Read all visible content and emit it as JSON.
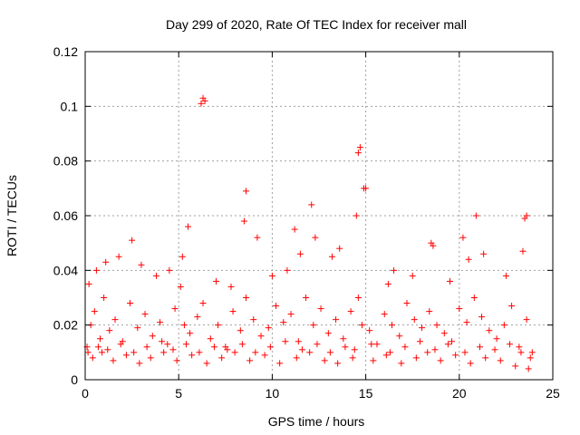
{
  "chart_data": {
    "type": "scatter",
    "title": "Day 299 of 2020, Rate Of TEC Index for receiver mall",
    "xlabel": "GPS time / hours",
    "ylabel": "ROTI / TECUs",
    "xlim": [
      0,
      25
    ],
    "ylim": [
      0,
      0.12
    ],
    "xticks": [
      0,
      5,
      10,
      15,
      20,
      25
    ],
    "yticks": [
      0,
      0.02,
      0.04,
      0.06,
      0.08,
      0.1,
      0.12
    ],
    "xtick_labels": [
      "0",
      "5",
      "10",
      "15",
      "20",
      "25"
    ],
    "ytick_labels": [
      "0",
      "0.02",
      "0.04",
      "0.06",
      "0.08",
      "0.1",
      "0.12"
    ],
    "grid": true,
    "marker": "+",
    "color": "#ff0000",
    "series": [
      {
        "x": [
          0.1,
          0.3,
          0.5,
          0.8,
          1.0,
          1.3,
          1.6,
          2.0,
          2.4,
          2.8,
          3.2,
          3.6,
          4.0,
          4.4,
          4.8,
          5.1,
          5.3,
          5.6,
          6.0,
          6.3,
          6.7,
          7.1,
          7.5,
          7.9,
          8.3,
          8.6,
          9.0,
          9.4,
          9.8,
          10.2,
          10.6,
          11.0,
          11.4,
          11.8,
          12.2,
          12.6,
          13.0,
          13.4,
          13.8,
          14.2,
          14.6,
          14.8,
          15.2,
          15.6,
          16.0,
          16.4,
          16.8,
          17.2,
          17.6,
          18.0,
          18.4,
          18.8,
          19.2,
          19.6,
          20.0,
          20.4,
          20.8,
          21.2,
          21.6,
          22.0,
          22.4,
          22.8,
          23.2,
          23.6,
          23.9,
          0.2,
          0.6,
          1.1,
          1.8,
          2.5,
          3.0,
          3.8,
          4.5,
          5.2,
          5.5,
          6.2,
          6.3,
          6.4,
          7.0,
          7.8,
          8.5,
          8.6,
          9.2,
          10.0,
          10.8,
          11.2,
          11.5,
          12.1,
          12.3,
          13.2,
          13.6,
          14.5,
          14.6,
          14.7,
          14.9,
          15.0,
          16.2,
          16.5,
          17.5,
          18.5,
          18.6,
          19.5,
          20.2,
          20.5,
          20.9,
          21.3,
          22.5,
          23.4,
          23.5,
          23.6,
          0.4,
          0.9,
          1.5,
          2.2,
          2.9,
          3.5,
          4.2,
          4.9,
          5.7,
          6.5,
          7.3,
          8.0,
          8.8,
          9.6,
          10.4,
          11.3,
          12.0,
          12.8,
          13.5,
          14.3,
          15.4,
          16.1,
          16.9,
          17.7,
          18.3,
          19.0,
          19.8,
          20.6,
          21.4,
          22.2,
          23.0,
          23.7,
          0.15,
          0.7,
          1.2,
          1.9,
          2.6,
          3.3,
          4.1,
          4.7,
          5.4,
          6.1,
          6.9,
          7.6,
          8.4,
          9.1,
          9.9,
          10.7,
          11.6,
          12.4,
          13.1,
          13.9,
          14.4,
          15.3,
          16.3,
          17.1,
          17.9,
          18.7,
          19.4,
          20.3,
          21.1,
          21.9,
          22.7,
          23.3,
          23.8
        ],
        "y": [
          0.012,
          0.02,
          0.025,
          0.015,
          0.03,
          0.018,
          0.022,
          0.014,
          0.028,
          0.019,
          0.024,
          0.016,
          0.021,
          0.013,
          0.026,
          0.034,
          0.02,
          0.017,
          0.023,
          0.028,
          0.015,
          0.02,
          0.012,
          0.025,
          0.018,
          0.03,
          0.022,
          0.016,
          0.019,
          0.027,
          0.021,
          0.024,
          0.014,
          0.03,
          0.02,
          0.026,
          0.017,
          0.022,
          0.015,
          0.025,
          0.03,
          0.02,
          0.018,
          0.013,
          0.024,
          0.02,
          0.016,
          0.028,
          0.022,
          0.019,
          0.025,
          0.02,
          0.017,
          0.014,
          0.026,
          0.021,
          0.03,
          0.023,
          0.018,
          0.015,
          0.02,
          0.027,
          0.012,
          0.022,
          0.01,
          0.035,
          0.04,
          0.043,
          0.045,
          0.051,
          0.042,
          0.038,
          0.04,
          0.045,
          0.056,
          0.101,
          0.103,
          0.102,
          0.036,
          0.034,
          0.058,
          0.069,
          0.052,
          0.038,
          0.04,
          0.055,
          0.046,
          0.064,
          0.052,
          0.045,
          0.048,
          0.06,
          0.083,
          0.085,
          0.07,
          0.07,
          0.035,
          0.04,
          0.038,
          0.05,
          0.049,
          0.036,
          0.052,
          0.044,
          0.06,
          0.046,
          0.038,
          0.047,
          0.059,
          0.06,
          0.008,
          0.01,
          0.007,
          0.009,
          0.006,
          0.008,
          0.01,
          0.007,
          0.009,
          0.006,
          0.008,
          0.01,
          0.007,
          0.009,
          0.006,
          0.008,
          0.01,
          0.007,
          0.006,
          0.008,
          0.007,
          0.009,
          0.006,
          0.008,
          0.01,
          0.007,
          0.009,
          0.006,
          0.008,
          0.007,
          0.005,
          0.004,
          0.01,
          0.012,
          0.011,
          0.013,
          0.01,
          0.012,
          0.014,
          0.011,
          0.013,
          0.01,
          0.012,
          0.011,
          0.013,
          0.01,
          0.012,
          0.014,
          0.011,
          0.013,
          0.01,
          0.012,
          0.011,
          0.013,
          0.01,
          0.012,
          0.014,
          0.011,
          0.013,
          0.01,
          0.012,
          0.011,
          0.013,
          0.01,
          0.008
        ]
      }
    ]
  }
}
